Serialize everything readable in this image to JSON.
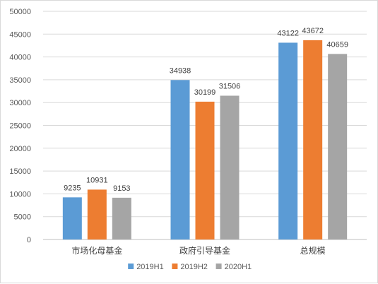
{
  "chart_data": {
    "type": "bar",
    "title": "",
    "xlabel": "",
    "ylabel": "",
    "categories": [
      "市场化母基金",
      "政府引导基金",
      "总规模"
    ],
    "series": [
      {
        "name": "2019H1",
        "values": [
          9235,
          34938,
          43122
        ],
        "color": "#5b9bd5"
      },
      {
        "name": "2019H2",
        "values": [
          10931,
          30199,
          43672
        ],
        "color": "#ed7d31"
      },
      {
        "name": "2020H1",
        "values": [
          9153,
          31506,
          40659
        ],
        "color": "#a5a5a5"
      }
    ],
    "ylim": [
      0,
      50000
    ],
    "yticks": [
      0,
      5000,
      10000,
      15000,
      20000,
      25000,
      30000,
      35000,
      40000,
      45000,
      50000
    ],
    "grid": true,
    "legend_position": "bottom"
  }
}
